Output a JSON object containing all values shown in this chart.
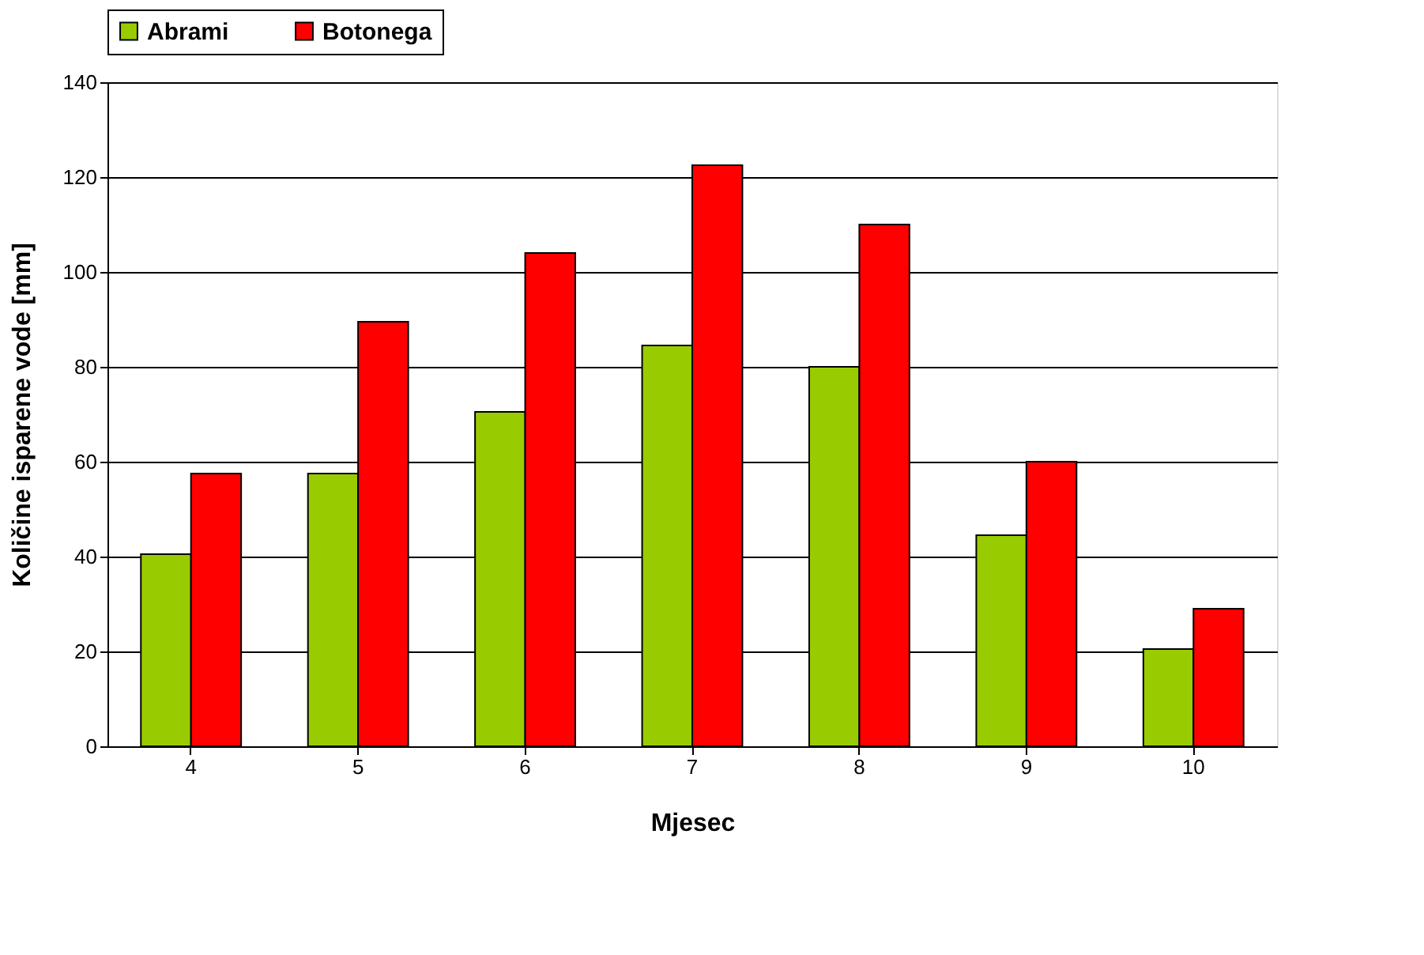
{
  "chart_data": {
    "type": "bar",
    "xlabel": "Mjesec",
    "ylabel": "Količine isparene vode   [mm]",
    "categories": [
      "4",
      "5",
      "6",
      "7",
      "8",
      "9",
      "10"
    ],
    "series": [
      {
        "name": "Abrami",
        "color": "#99cc00",
        "values": [
          40.5,
          57.5,
          70.5,
          84.5,
          80,
          44.5,
          20.5
        ]
      },
      {
        "name": "Botonega",
        "color": "#ff0000",
        "values": [
          57.5,
          89.5,
          104,
          122.5,
          110,
          60,
          29
        ]
      }
    ],
    "ylim": [
      0,
      140
    ],
    "yticks": [
      0,
      20,
      40,
      60,
      80,
      100,
      120,
      140
    ],
    "grid": "y",
    "legend": "top"
  }
}
